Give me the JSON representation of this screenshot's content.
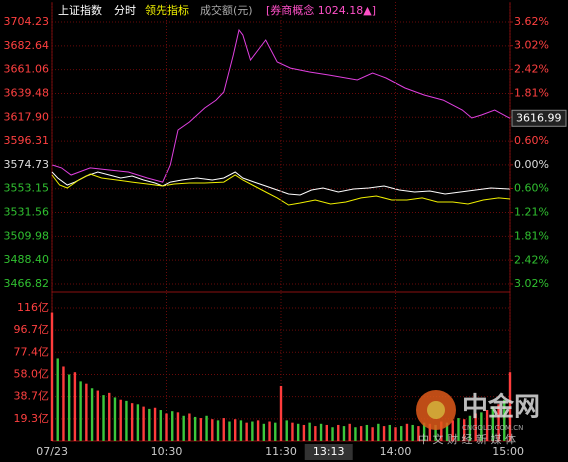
{
  "header": {
    "title": "上证指数",
    "tabs": [
      "分时",
      "领先指标",
      "成交额(元)"
    ],
    "sector": "[券商概念 1024.18▲]"
  },
  "chart_data": [
    {
      "type": "line",
      "ylim": [
        3466.82,
        3704.23
      ],
      "yticks": [
        {
          "value": 3704.23,
          "label": "3704.23"
        },
        {
          "value": 3682.64,
          "label": "3682.64"
        },
        {
          "value": 3661.06,
          "label": "3661.06"
        },
        {
          "value": 3639.48,
          "label": "3639.48"
        },
        {
          "value": 3617.9,
          "label": "3617.90"
        },
        {
          "value": 3596.31,
          "label": "3596.31"
        },
        {
          "value": 3574.73,
          "label": "3574.73"
        },
        {
          "value": 3553.15,
          "label": "3553.15"
        },
        {
          "value": 3531.56,
          "label": "3531.56"
        },
        {
          "value": 3509.98,
          "label": "3509.98"
        },
        {
          "value": 3488.4,
          "label": "3488.40"
        },
        {
          "value": 3466.82,
          "label": "3466.82"
        }
      ],
      "y2lim": [
        -3.02,
        3.62
      ],
      "y2ticks": [
        {
          "value": 3.62,
          "label": "3.62%"
        },
        {
          "value": 3.02,
          "label": "3.02%"
        },
        {
          "value": 2.42,
          "label": "2.42%"
        },
        {
          "value": 1.81,
          "label": "1.81%"
        },
        {
          "value": 1.21,
          "label": "1.21%"
        },
        {
          "value": 0.6,
          "label": "0.60%"
        },
        {
          "value": 0,
          "label": "0.00%"
        },
        {
          "value": -0.6,
          "label": "0.60%"
        },
        {
          "value": -1.21,
          "label": "1.21%"
        },
        {
          "value": -1.81,
          "label": "1.81%"
        },
        {
          "value": -2.42,
          "label": "2.42%"
        },
        {
          "value": -3.02,
          "label": "3.02%"
        }
      ],
      "xlim": [
        0,
        240
      ],
      "current_price": "3616.99",
      "series": [
        {
          "color": "#e040e0",
          "x": [
            0,
            5,
            10,
            20,
            30,
            40,
            50,
            58,
            62,
            66,
            72,
            80,
            86,
            90,
            95,
            98,
            100,
            104,
            108,
            112,
            118,
            125,
            135,
            145,
            160,
            168,
            175,
            185,
            195,
            205,
            215,
            220,
            225,
            232,
            240
          ],
          "values": [
            3574.7,
            3572.0,
            3565.6,
            3572.0,
            3570.1,
            3568.3,
            3562.9,
            3559.2,
            3574.7,
            3606.4,
            3613.6,
            3626.3,
            3633.5,
            3640.8,
            3674.3,
            3697.0,
            3692.5,
            3669.8,
            3678.9,
            3687.9,
            3668.0,
            3662.5,
            3658.9,
            3656.2,
            3651.7,
            3658.0,
            3653.5,
            3644.4,
            3638.1,
            3633.5,
            3624.5,
            3617.2,
            3620.0,
            3624.5,
            3616.99
          ]
        },
        {
          "color": "#ffffff",
          "x": [
            0,
            3,
            8,
            12,
            18,
            24,
            30,
            36,
            42,
            48,
            54,
            58,
            62,
            68,
            76,
            84,
            90,
            96,
            100,
            106,
            112,
            118,
            124,
            130,
            136,
            142,
            150,
            158,
            166,
            174,
            182,
            190,
            198,
            206,
            214,
            222,
            230,
            240
          ],
          "values": [
            3568.3,
            3562.9,
            3556.5,
            3559.2,
            3564.7,
            3568.3,
            3565.6,
            3562.9,
            3564.7,
            3561.1,
            3558.3,
            3555.6,
            3559.2,
            3561.1,
            3562.9,
            3561.1,
            3562.9,
            3568.3,
            3562.9,
            3559.2,
            3555.6,
            3552.0,
            3548.4,
            3547.5,
            3552.0,
            3553.8,
            3550.2,
            3552.9,
            3553.8,
            3555.6,
            3552.0,
            3550.2,
            3551.1,
            3548.4,
            3550.2,
            3552.0,
            3553.8,
            3552.9
          ]
        },
        {
          "color": "#f0f000",
          "x": [
            0,
            4,
            8,
            14,
            20,
            26,
            34,
            42,
            50,
            58,
            64,
            72,
            80,
            90,
            96,
            100,
            106,
            112,
            118,
            124,
            130,
            138,
            146,
            154,
            162,
            170,
            178,
            186,
            194,
            202,
            210,
            218,
            226,
            234,
            240
          ],
          "values": [
            3565.6,
            3556.5,
            3553.8,
            3561.1,
            3566.5,
            3562.9,
            3561.1,
            3559.2,
            3557.4,
            3555.6,
            3557.4,
            3558.3,
            3558.3,
            3559.2,
            3565.6,
            3561.1,
            3555.6,
            3550.2,
            3544.8,
            3538.4,
            3540.2,
            3542.9,
            3539.3,
            3541.1,
            3544.8,
            3546.6,
            3542.9,
            3542.9,
            3544.8,
            3541.1,
            3541.1,
            3539.3,
            3542.9,
            3544.8,
            3543.8
          ]
        }
      ]
    },
    {
      "type": "bar",
      "ylim": [
        0,
        116
      ],
      "yticks": [
        {
          "value": 116,
          "label": "116亿"
        },
        {
          "value": 96.7,
          "label": "96.7亿"
        },
        {
          "value": 77.4,
          "label": "77.4亿"
        },
        {
          "value": 58.0,
          "label": "58.0亿"
        },
        {
          "value": 38.7,
          "label": "38.7亿"
        },
        {
          "value": 19.3,
          "label": "19.3亿"
        }
      ],
      "xlim": [
        0,
        240
      ],
      "xticks": [
        {
          "value": 0,
          "label": "07/23"
        },
        {
          "value": 60,
          "label": "10:30"
        },
        {
          "value": 120,
          "label": "11:30"
        },
        {
          "value": 180,
          "label": "14:00"
        },
        {
          "value": 240,
          "label": "15:00"
        }
      ],
      "cursor": {
        "value": 145,
        "label": "13:13"
      },
      "colors": [
        "#ff3c3c",
        "#3cc83c"
      ],
      "x": [
        0,
        3,
        6,
        9,
        12,
        15,
        18,
        21,
        24,
        27,
        30,
        33,
        36,
        39,
        42,
        45,
        48,
        51,
        54,
        57,
        60,
        63,
        66,
        69,
        72,
        75,
        78,
        81,
        84,
        87,
        90,
        93,
        96,
        99,
        102,
        105,
        108,
        111,
        114,
        117,
        120,
        123,
        126,
        129,
        132,
        135,
        138,
        141,
        144,
        147,
        150,
        153,
        156,
        159,
        162,
        165,
        168,
        171,
        174,
        177,
        180,
        183,
        186,
        189,
        192,
        195,
        198,
        201,
        204,
        207,
        210,
        213,
        216,
        219,
        222,
        225,
        228,
        231,
        234,
        237,
        240
      ],
      "values": [
        112,
        72,
        65,
        58,
        60,
        52,
        50,
        46,
        44,
        40,
        42,
        38,
        36,
        35,
        33,
        32,
        30,
        28,
        29,
        27,
        24,
        26,
        25,
        22,
        24,
        21,
        20,
        22,
        19,
        18,
        20,
        17,
        19,
        18,
        16,
        17,
        18,
        15,
        17,
        16,
        48,
        18,
        16,
        15,
        14,
        16,
        13,
        15,
        14,
        12,
        14,
        13,
        15,
        12,
        13,
        14,
        12,
        15,
        13,
        14,
        12,
        13,
        15,
        14,
        13,
        16,
        15,
        14,
        17,
        16,
        18,
        20,
        19,
        22,
        24,
        25,
        27,
        30,
        32,
        36,
        60
      ]
    }
  ],
  "watermark": {
    "brand": "中金网",
    "site": "CNGOLD.COM.CN",
    "slogan": "中 文 财 经 新 媒 体"
  }
}
